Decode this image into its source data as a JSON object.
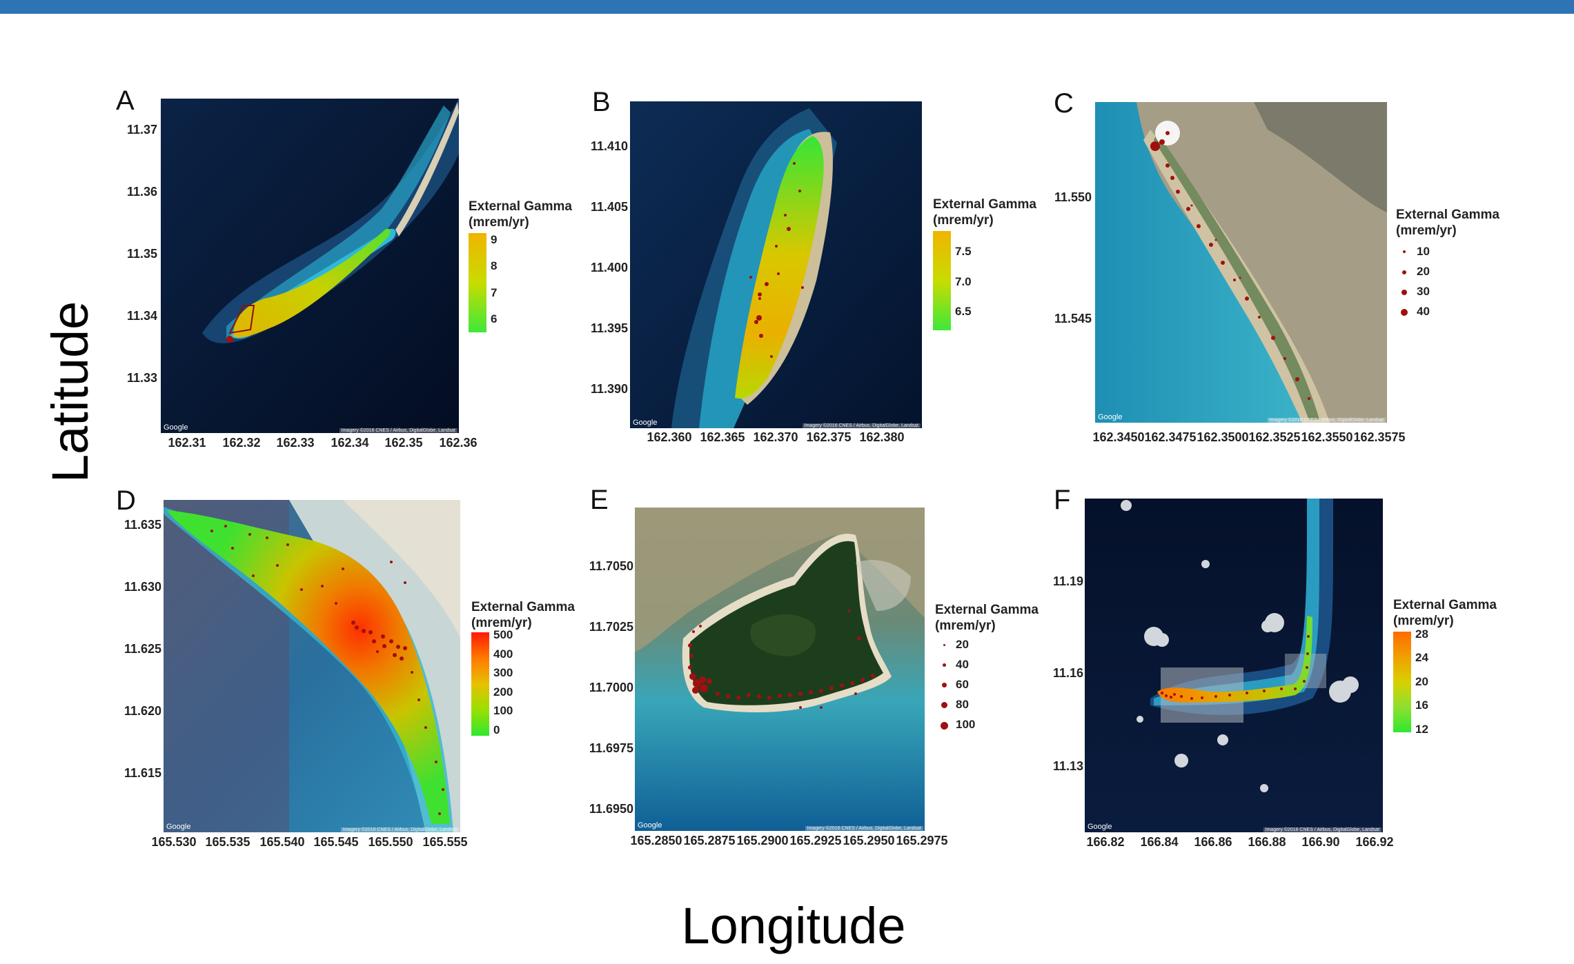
{
  "figure": {
    "ylabel": "Latitude",
    "xlabel": "Longitude",
    "map_credit": "Google",
    "imagery_credit": "Imagery ©2016 CNES / Airbus, DigitalGlobe, Landsat"
  },
  "colors": {
    "header_bar": "#2E74B5",
    "point": "#a01010",
    "scale_green": "#2fe82f",
    "scale_yellow": "#f0d000",
    "scale_orange": "#ff8c00",
    "scale_red": "#ff1a00"
  },
  "chart_data": [
    {
      "panel": "A",
      "type": "scatter",
      "legend_title": [
        "External Gamma",
        "(mrem/yr)"
      ],
      "legend_type": "colorbar",
      "legend_ticks": [
        "9",
        "8",
        "7",
        "6"
      ],
      "xticks": [
        "162.31",
        "162.32",
        "162.33",
        "162.34",
        "162.35",
        "162.36"
      ],
      "yticks": [
        "11.37",
        "11.36",
        "11.35",
        "11.34",
        "11.33"
      ],
      "xlim": [
        162.305,
        162.36
      ],
      "ylim": [
        11.325,
        11.372
      ],
      "color_range": [
        6,
        9
      ]
    },
    {
      "panel": "B",
      "type": "scatter",
      "legend_title": [
        "External Gamma",
        "(mrem/yr)"
      ],
      "legend_type": "colorbar",
      "legend_ticks": [
        "7.5",
        "7.0",
        "6.5"
      ],
      "xticks": [
        "162.360",
        "162.365",
        "162.370",
        "162.375",
        "162.380"
      ],
      "yticks": [
        "11.410",
        "11.405",
        "11.400",
        "11.395",
        "11.390"
      ],
      "xlim": [
        162.3585,
        162.386
      ],
      "ylim": [
        11.3865,
        11.4125
      ],
      "color_range": [
        6.4,
        7.7
      ]
    },
    {
      "panel": "C",
      "type": "scatter",
      "legend_title": [
        "External Gamma",
        "(mrem/yr)"
      ],
      "legend_type": "size",
      "legend_ticks": [
        "10",
        "20",
        "30",
        "40"
      ],
      "xticks": [
        "162.3450",
        "162.3475",
        "162.3500",
        "162.3525",
        "162.3550",
        "162.3575"
      ],
      "yticks": [
        "11.550",
        "11.545"
      ],
      "xlim": [
        162.345,
        162.3585
      ],
      "ylim": [
        11.541,
        11.554
      ]
    },
    {
      "panel": "D",
      "type": "scatter",
      "legend_title": [
        "External Gamma",
        "(mrem/yr)"
      ],
      "legend_type": "colorbar",
      "legend_ticks": [
        "500",
        "400",
        "300",
        "200",
        "100",
        "0"
      ],
      "xticks": [
        "165.530",
        "165.535",
        "165.540",
        "165.545",
        "165.550",
        "165.555"
      ],
      "yticks": [
        "11.635",
        "11.630",
        "11.625",
        "11.620",
        "11.615"
      ],
      "xlim": [
        165.529,
        165.556
      ],
      "ylim": [
        11.61,
        11.637
      ],
      "color_range": [
        0,
        500
      ]
    },
    {
      "panel": "E",
      "type": "scatter",
      "legend_title": [
        "External Gamma",
        "(mrem/yr)"
      ],
      "legend_type": "size",
      "legend_ticks": [
        "20",
        "40",
        "60",
        "80",
        "100"
      ],
      "xticks": [
        "165.2850",
        "165.2875",
        "165.2900",
        "165.2925",
        "165.2950",
        "165.2975"
      ],
      "yticks": [
        "11.7050",
        "11.7025",
        "11.7000",
        "11.6975",
        "11.6950"
      ],
      "xlim": [
        165.285,
        165.2985
      ],
      "ylim": [
        11.694,
        11.7075
      ]
    },
    {
      "panel": "F",
      "type": "scatter",
      "legend_title": [
        "External Gamma",
        "(mrem/yr)"
      ],
      "legend_type": "colorbar",
      "legend_ticks": [
        "28",
        "24",
        "20",
        "16",
        "12"
      ],
      "xticks": [
        "166.82",
        "166.84",
        "166.86",
        "166.88",
        "166.90",
        "166.92"
      ],
      "yticks": [
        "11.19",
        "11.16",
        "11.13"
      ],
      "xlim": [
        166.818,
        166.925
      ],
      "ylim": [
        11.108,
        11.217
      ],
      "color_range": [
        12,
        28
      ]
    }
  ]
}
